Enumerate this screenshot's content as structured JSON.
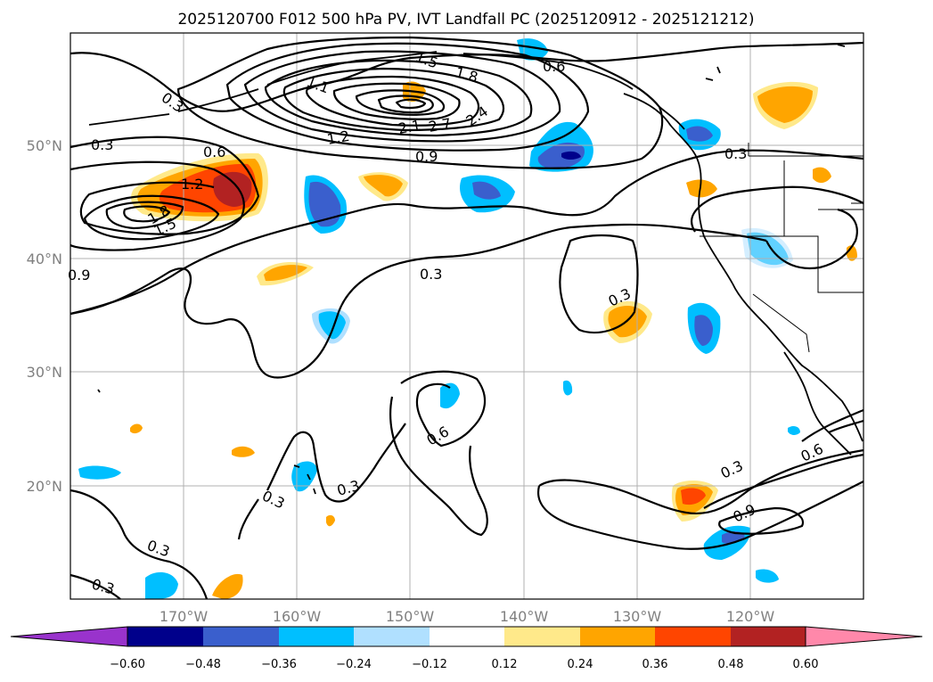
{
  "title": "2025120700 F012 500 hPa PV, IVT Landfall PC (2025120912 - 2025121212)",
  "map": {
    "lon_ticks": [
      "170°W",
      "160°W",
      "150°W",
      "140°W",
      "130°W",
      "120°W"
    ],
    "lat_ticks": [
      "50°N",
      "40°N",
      "30°N",
      "20°N"
    ]
  },
  "colors": {
    "neg_extreme": "#9933cc",
    "neg_060": "#00008b",
    "neg_048": "#3a5fcd",
    "neg_036": "#00bfff",
    "neg_024": "#b0e0ff",
    "neutral": "#ffffff",
    "pos_012": "#ffe98a",
    "pos_024": "#ffa500",
    "pos_036": "#ff4500",
    "pos_048": "#b22222",
    "pos_extreme": "#ff88aa"
  },
  "colorbar": {
    "labels": [
      "−0.60",
      "−0.48",
      "−0.36",
      "−0.24",
      "−0.12",
      "0.12",
      "0.24",
      "0.36",
      "0.48",
      "0.60"
    ]
  },
  "contour_labels": {
    "west_03": "0.3",
    "west_06": "0.6",
    "west_09": "0.9",
    "west_12": "1.2",
    "west_15": "1.5",
    "west_18": "1.8",
    "north_03": "0.3",
    "north_06": "0.6",
    "north_09": "0.9",
    "north_12": "1.2",
    "north_15": "1.5",
    "north_18": "1.8",
    "north_21": "2.1",
    "north_24": "2.4",
    "north_27": "2.7",
    "north_11": "1.1",
    "coast_03": "0.3",
    "mid_03": "0.3",
    "east_03": "0.3",
    "loop_06": "0.6",
    "hawaii_03": "0.3",
    "hawaii2_03": "0.3",
    "sw_03": "0.3",
    "sw2_03": "0.3",
    "se_03": "0.3",
    "se_06": "0.6",
    "se_09": "0.9"
  }
}
